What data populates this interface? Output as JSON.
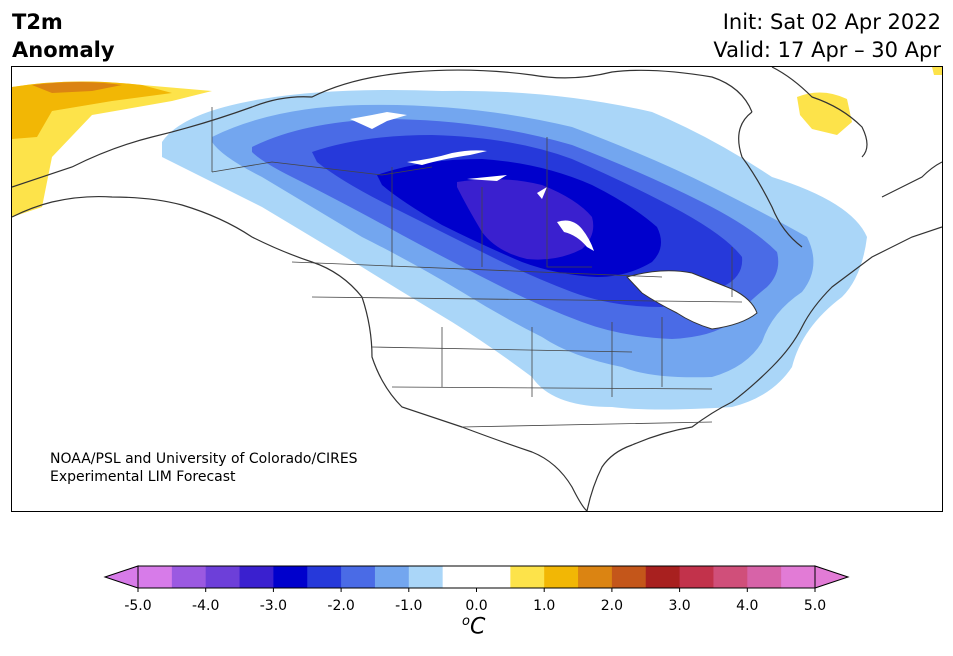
{
  "header": {
    "title_line1": "T2m",
    "title_line2": "Anomaly",
    "init": "Init: Sat 02 Apr 2022",
    "valid": "Valid: 17 Apr – 30 Apr"
  },
  "map": {
    "credit_line1": "NOAA/PSL and University of Colorado/CIRES",
    "credit_line2": "Experimental LIM Forecast"
  },
  "colorbar": {
    "ticks": [
      "-5.0",
      "-4.0",
      "-3.0",
      "-2.0",
      "-1.0",
      "0.0",
      "1.0",
      "2.0",
      "3.0",
      "4.0",
      "5.0"
    ],
    "unit_base": "C",
    "unit_sup": "o",
    "colors": [
      "#d77be9",
      "#9b59e1",
      "#6d3fd9",
      "#3a20cf",
      "#0000cc",
      "#2639da",
      "#4a6be6",
      "#73a6ef",
      "#aad6f8",
      "#ffffff",
      "#ffffff",
      "#fde34a",
      "#f2b705",
      "#db8412",
      "#c4561a",
      "#a8201f",
      "#c2324b",
      "#d04f7a",
      "#d763a8",
      "#e27bd6"
    ],
    "under_color": "#d77be9",
    "over_color": "#e27bd6"
  }
}
